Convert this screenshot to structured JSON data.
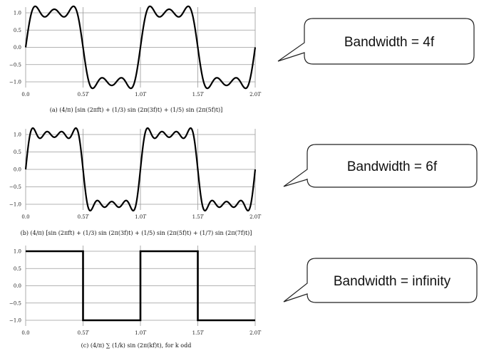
{
  "chart_data": [
    {
      "type": "line",
      "title": "",
      "caption": "(a) (4/π) [sin (2πft) + (1/3) sin (2π(3f)t) + (1/5) sin (2π(5f)t)]",
      "harmonics": [
        1,
        3,
        5
      ],
      "xlabel": "",
      "ylabel": "",
      "x_ticks": [
        "0.0",
        "0.5T",
        "1.0T",
        "1.5T",
        "2.0T"
      ],
      "y_ticks": [
        "1.0",
        "0.5",
        "0.0",
        "−0.5",
        "−1.0"
      ],
      "xlim": [
        0,
        2
      ],
      "ylim": [
        -1.2,
        1.2
      ],
      "grid": "horizontal and vertical",
      "annotation": "Bandwidth = 4f"
    },
    {
      "type": "line",
      "title": "",
      "caption": "(b) (4/π) [sin (2πft) + (1/3) sin (2π(3f)t) + (1/5) sin (2π(5f)t) + (1/7) sin (2π(7f)t)]",
      "harmonics": [
        1,
        3,
        5,
        7
      ],
      "xlabel": "",
      "ylabel": "",
      "x_ticks": [
        "0.0",
        "0.5T",
        "1.0T",
        "1.5T",
        "2.0T"
      ],
      "y_ticks": [
        "1.0",
        "0.5",
        "0.0",
        "−0.5",
        "−1.0"
      ],
      "xlim": [
        0,
        2
      ],
      "ylim": [
        -1.2,
        1.2
      ],
      "grid": "horizontal and vertical",
      "annotation": "Bandwidth = 6f"
    },
    {
      "type": "line",
      "title": "",
      "caption": "(c) (4/π) ∑ (1/k) sin (2π(kf)t),     for k odd",
      "harmonics": "square",
      "xlabel": "",
      "ylabel": "",
      "x_ticks": [
        "0.0",
        "0.5T",
        "1.0T",
        "1.5T",
        "2.0T"
      ],
      "y_ticks": [
        "1.0",
        "0.5",
        "0.0",
        "−0.5",
        "−1.0"
      ],
      "xlim": [
        0,
        2
      ],
      "ylim": [
        -1.2,
        1.2
      ],
      "grid": "horizontal and vertical",
      "annotation": "Bandwidth = infinity"
    }
  ],
  "colors": {
    "line": "#000000",
    "grid": "#9a9a9a",
    "frame": "#444444"
  }
}
